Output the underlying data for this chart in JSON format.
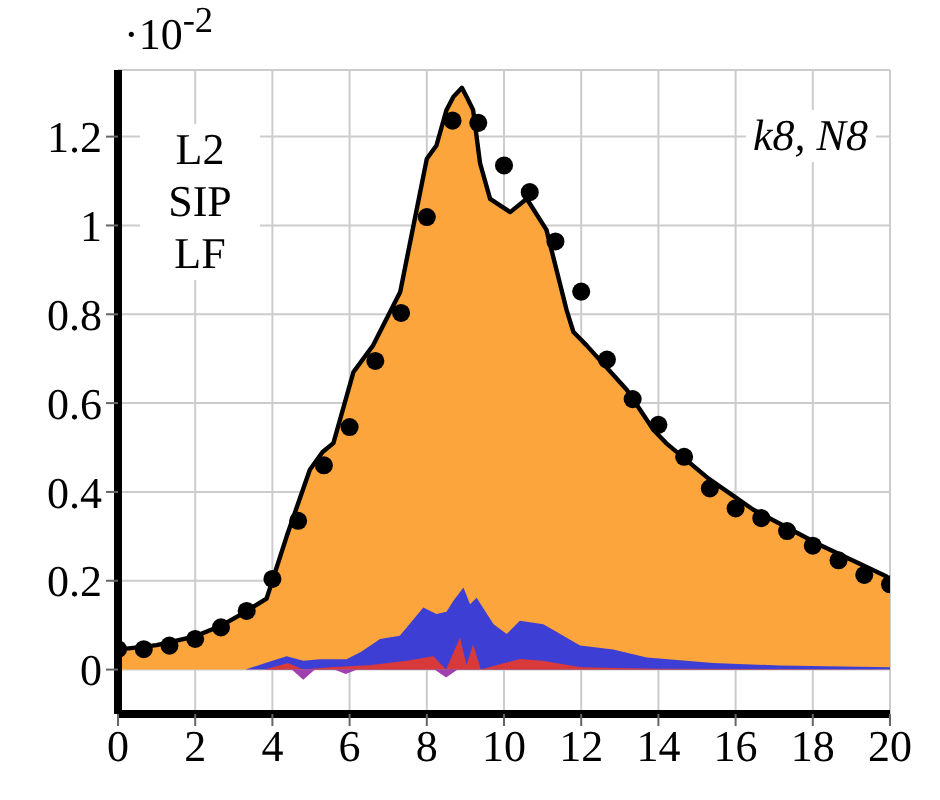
{
  "chart_data": {
    "type": "area",
    "annotations": [
      "·10$^{-2}$",
      "L2\nSIP\nLF",
      "k8, N8"
    ],
    "xlim": [
      0,
      20
    ],
    "xticks": [
      0,
      2,
      4,
      6,
      8,
      10,
      12,
      14,
      16,
      18,
      20
    ],
    "ylim": [
      -0.1,
      1.35
    ],
    "yticks": [
      0,
      0.2,
      0.4,
      0.6,
      0.8,
      1,
      1.2
    ],
    "grid": true,
    "series": [
      {
        "color": "#fba53c",
        "x": [
          0,
          1,
          2,
          2.7,
          3.3,
          3.85,
          4.37,
          4.97,
          5.3,
          5.58,
          6.1,
          6.61,
          7.31,
          8.0,
          8.25,
          8.51,
          8.69,
          8.91,
          9.03,
          9.2,
          9.38,
          9.64,
          10.16,
          10.59,
          11.1,
          11.62,
          11.8,
          12.14,
          13.18,
          13.87,
          14.2,
          15.3,
          16.46,
          18.2,
          19.9,
          20
        ],
        "values": [
          0.045,
          0.055,
          0.075,
          0.1,
          0.13,
          0.16,
          0.3,
          0.45,
          0.49,
          0.51,
          0.67,
          0.73,
          0.85,
          1.15,
          1.18,
          1.26,
          1.29,
          1.31,
          1.29,
          1.26,
          1.14,
          1.06,
          1.03,
          1.06,
          0.99,
          0.81,
          0.76,
          0.73,
          0.63,
          0.54,
          0.51,
          0.43,
          0.36,
          0.28,
          0.21,
          0.2
        ]
      },
      {
        "type": "area",
        "color": "#3d3fd4",
        "x": [
          0,
          3.3,
          4.0,
          4.37,
          4.8,
          5.23,
          5.92,
          6.3,
          6.79,
          7.3,
          7.91,
          8.25,
          8.51,
          8.69,
          8.95,
          9.12,
          9.29,
          9.73,
          10.07,
          10.41,
          11.02,
          11.97,
          12.83,
          13.7,
          15.42,
          17.15,
          20
        ],
        "values": [
          0,
          0,
          0.02,
          0.03,
          0.02,
          0.023,
          0.023,
          0.04,
          0.069,
          0.076,
          0.14,
          0.125,
          0.13,
          0.155,
          0.185,
          0.147,
          0.162,
          0.102,
          0.08,
          0.11,
          0.102,
          0.054,
          0.045,
          0.027,
          0.015,
          0.009,
          0.005
        ]
      },
      {
        "type": "area",
        "color": "#d8393b",
        "x": [
          0,
          3.8,
          4.4,
          4.8,
          5.5,
          6.5,
          7.48,
          8.17,
          8.5,
          8.86,
          9.03,
          9.2,
          9.4,
          10.41,
          11.0,
          12,
          14,
          20
        ],
        "values": [
          0,
          0,
          0.015,
          0,
          0.005,
          0.01,
          0.02,
          0.03,
          0,
          0.072,
          0.01,
          0.057,
          0,
          0.024,
          0.02,
          0.005,
          0.002,
          0
        ]
      },
      {
        "type": "area",
        "color": "#a040b0",
        "x": [
          0,
          4.5,
          4.8,
          5.1,
          5.6,
          5.9,
          6.2,
          8.2,
          8.5,
          8.8,
          20
        ],
        "values": [
          0,
          0,
          -0.023,
          0,
          0,
          -0.01,
          0,
          0,
          -0.018,
          0,
          0
        ]
      },
      {
        "type": "scatter",
        "color": "#000000",
        "marker": "circle",
        "x": [
          0,
          0.6667,
          1.3333,
          2,
          2.6667,
          3.3333,
          4,
          4.6667,
          5.3333,
          6,
          6.6667,
          7.3333,
          8,
          8.6667,
          9.3333,
          10,
          10.6667,
          11.3333,
          12,
          12.6667,
          13.3333,
          14,
          14.6667,
          15.3333,
          16,
          16.6667,
          17.3333,
          18,
          18.6667,
          19.3333,
          20
        ],
        "values": [
          0.046,
          0.046,
          0.054,
          0.069,
          0.095,
          0.132,
          0.204,
          0.335,
          0.46,
          0.546,
          0.695,
          0.803,
          1.019,
          1.236,
          1.231,
          1.135,
          1.075,
          0.964,
          0.851,
          0.698,
          0.609,
          0.551,
          0.479,
          0.408,
          0.363,
          0.341,
          0.312,
          0.279,
          0.246,
          0.213,
          0.192
        ]
      }
    ]
  }
}
